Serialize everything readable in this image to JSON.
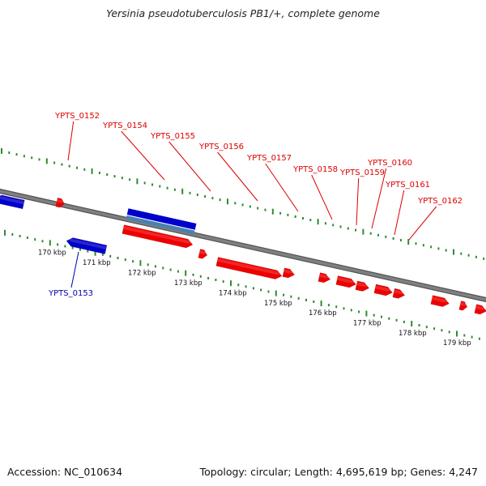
{
  "title": "Yersinia pseudotuberculosis PB1/+, complete genome",
  "footer": {
    "accession": "Accession: NC_010634",
    "summary": "Topology: circular; Length: 4,695,619 bp; Genes: 4,247"
  },
  "colors": {
    "forward_gene": "#ee0000",
    "reverse_gene": "#0000cc",
    "rna_feature": "#4a7fb0",
    "backbone": "#808080",
    "tick": "#2e8b2e",
    "forward_label": "#dd0000",
    "reverse_label": "#0000aa"
  },
  "axis": {
    "unit": "kbp",
    "ticks_kbp": [
      170,
      171,
      172,
      173,
      174,
      175,
      176,
      177,
      178,
      179
    ],
    "tick_labels": [
      "170 kbp",
      "171 kbp",
      "172 kbp",
      "173 kbp",
      "174 kbp",
      "175 kbp",
      "176 kbp",
      "177 kbp",
      "178 kbp",
      "179 kbp"
    ]
  },
  "gene_labels": [
    {
      "text": "YPTS_0152",
      "strand": "forward"
    },
    {
      "text": "YPTS_0153",
      "strand": "reverse"
    },
    {
      "text": "YPTS_0154",
      "strand": "forward"
    },
    {
      "text": "YPTS_0155",
      "strand": "forward"
    },
    {
      "text": "YPTS_0156",
      "strand": "forward"
    },
    {
      "text": "YPTS_0157",
      "strand": "forward"
    },
    {
      "text": "YPTS_0158",
      "strand": "forward"
    },
    {
      "text": "YPTS_0159",
      "strand": "forward"
    },
    {
      "text": "YPTS_0160",
      "strand": "forward"
    },
    {
      "text": "YPTS_0161",
      "strand": "forward"
    },
    {
      "text": "YPTS_0162",
      "strand": "forward"
    }
  ]
}
